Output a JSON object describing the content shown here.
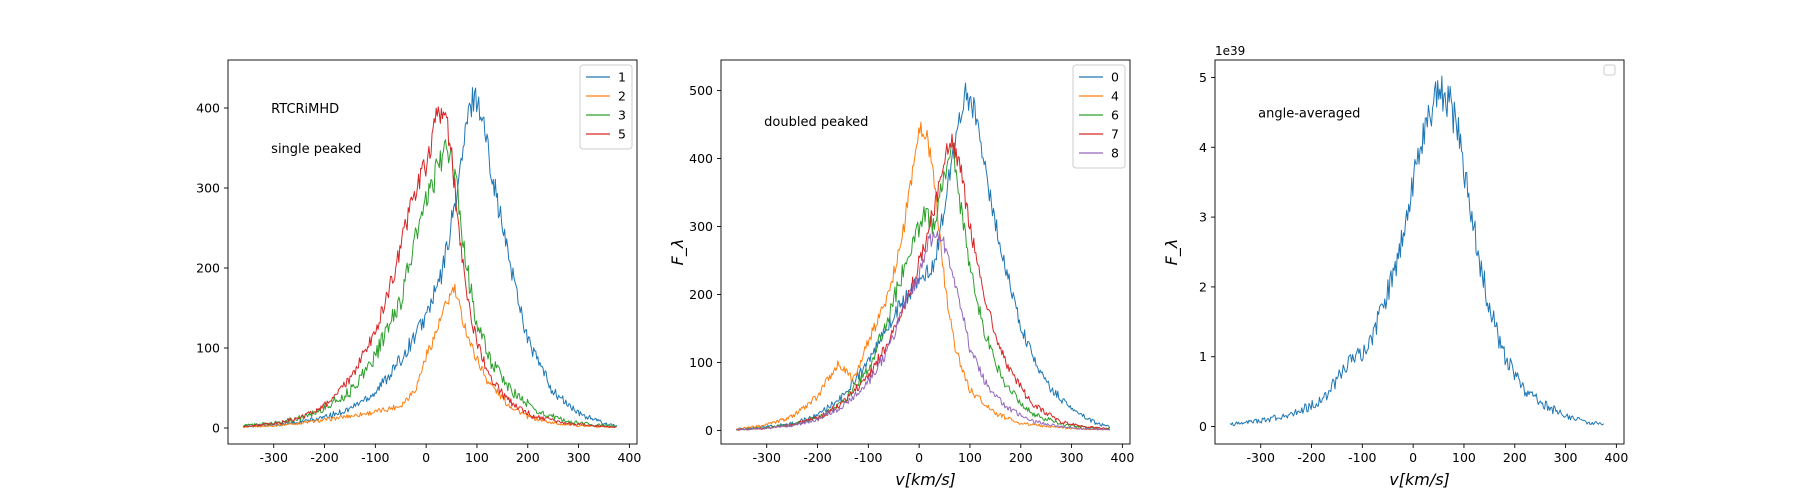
{
  "chart_data": [
    {
      "type": "line",
      "panel": "left",
      "title": "",
      "xlabel": "",
      "ylabel": "",
      "xlim": [
        -390,
        415
      ],
      "ylim": [
        -20,
        460
      ],
      "xticks": [
        -300,
        -200,
        -100,
        0,
        100,
        200,
        300,
        400
      ],
      "yticks": [
        0,
        100,
        200,
        300,
        400
      ],
      "grid": false,
      "legend_position": "top-right",
      "annotations": [
        {
          "text": "RTCRiMHD",
          "x": -305,
          "y": 400
        },
        {
          "text": "single peaked",
          "x": -305,
          "y": 350
        }
      ],
      "series": [
        {
          "name": "1",
          "color": "#1f77b4",
          "center": 90,
          "amp": 410,
          "wl": 100,
          "wr": 80,
          "noise": 12,
          "profile": [
            [
              -360,
              2
            ],
            [
              -300,
              4
            ],
            [
              -250,
              7
            ],
            [
              -200,
              13
            ],
            [
              -150,
              24
            ],
            [
              -100,
              45
            ],
            [
              -50,
              85
            ],
            [
              0,
              140
            ],
            [
              30,
              190
            ],
            [
              60,
              290
            ],
            [
              80,
              380
            ],
            [
              95,
              420
            ],
            [
              110,
              390
            ],
            [
              130,
              320
            ],
            [
              150,
              250
            ],
            [
              200,
              110
            ],
            [
              250,
              45
            ],
            [
              300,
              18
            ],
            [
              350,
              6
            ],
            [
              375,
              3
            ]
          ]
        },
        {
          "name": "2",
          "color": "#ff7f0e",
          "center": 50,
          "amp": 180,
          "wl": 60,
          "wr": 50,
          "noise": 6,
          "profile": [
            [
              -360,
              1
            ],
            [
              -300,
              3
            ],
            [
              -250,
              6
            ],
            [
              -200,
              10
            ],
            [
              -150,
              15
            ],
            [
              -100,
              20
            ],
            [
              -50,
              28
            ],
            [
              -20,
              50
            ],
            [
              0,
              90
            ],
            [
              20,
              120
            ],
            [
              40,
              155
            ],
            [
              55,
              175
            ],
            [
              70,
              140
            ],
            [
              90,
              100
            ],
            [
              120,
              60
            ],
            [
              160,
              30
            ],
            [
              200,
              14
            ],
            [
              250,
              6
            ],
            [
              300,
              3
            ],
            [
              375,
              1
            ]
          ]
        },
        {
          "name": "3",
          "color": "#2ca02c",
          "center": 40,
          "amp": 340,
          "wl": 90,
          "wr": 60,
          "noise": 12,
          "profile": [
            [
              -360,
              3
            ],
            [
              -300,
              6
            ],
            [
              -250,
              12
            ],
            [
              -200,
              25
            ],
            [
              -150,
              45
            ],
            [
              -100,
              90
            ],
            [
              -50,
              160
            ],
            [
              -20,
              240
            ],
            [
              10,
              300
            ],
            [
              30,
              340
            ],
            [
              45,
              345
            ],
            [
              60,
              300
            ],
            [
              80,
              200
            ],
            [
              100,
              130
            ],
            [
              130,
              80
            ],
            [
              170,
              45
            ],
            [
              220,
              20
            ],
            [
              280,
              8
            ],
            [
              330,
              4
            ],
            [
              375,
              2
            ]
          ]
        },
        {
          "name": "5",
          "color": "#d62728",
          "center": 30,
          "amp": 400,
          "wl": 80,
          "wr": 45,
          "noise": 10,
          "profile": [
            [
              -360,
              2
            ],
            [
              -300,
              5
            ],
            [
              -250,
              12
            ],
            [
              -200,
              28
            ],
            [
              -150,
              60
            ],
            [
              -100,
              120
            ],
            [
              -60,
              200
            ],
            [
              -30,
              280
            ],
            [
              0,
              330
            ],
            [
              20,
              385
            ],
            [
              35,
              405
            ],
            [
              50,
              340
            ],
            [
              70,
              220
            ],
            [
              90,
              130
            ],
            [
              120,
              70
            ],
            [
              160,
              35
            ],
            [
              210,
              15
            ],
            [
              270,
              6
            ],
            [
              330,
              3
            ],
            [
              375,
              1
            ]
          ]
        }
      ]
    },
    {
      "type": "line",
      "panel": "middle",
      "title": "",
      "xlabel": "v[km/s]",
      "ylabel": "F_λ",
      "xlim": [
        -390,
        415
      ],
      "ylim": [
        -20,
        545
      ],
      "xticks": [
        -300,
        -200,
        -100,
        0,
        100,
        200,
        300,
        400
      ],
      "yticks": [
        0,
        100,
        200,
        300,
        400,
        500
      ],
      "grid": false,
      "legend_position": "top-right",
      "annotations": [
        {
          "text": "doubled peaked",
          "x": -305,
          "y": 455
        }
      ],
      "series": [
        {
          "name": "0",
          "color": "#1f77b4",
          "center": 90,
          "amp": 500,
          "noise": 12,
          "profile": [
            [
              -360,
              2
            ],
            [
              -300,
              5
            ],
            [
              -250,
              10
            ],
            [
              -200,
              22
            ],
            [
              -150,
              50
            ],
            [
              -100,
              100
            ],
            [
              -50,
              170
            ],
            [
              0,
              220
            ],
            [
              30,
              240
            ],
            [
              50,
              330
            ],
            [
              70,
              420
            ],
            [
              90,
              495
            ],
            [
              110,
              470
            ],
            [
              130,
              380
            ],
            [
              160,
              270
            ],
            [
              200,
              150
            ],
            [
              250,
              70
            ],
            [
              300,
              30
            ],
            [
              350,
              10
            ],
            [
              375,
              5
            ]
          ]
        },
        {
          "name": "4",
          "color": "#ff7f0e",
          "center": 0,
          "amp": 450,
          "noise": 10,
          "profile": [
            [
              -360,
              2
            ],
            [
              -300,
              8
            ],
            [
              -250,
              20
            ],
            [
              -200,
              50
            ],
            [
              -160,
              100
            ],
            [
              -130,
              75
            ],
            [
              -100,
              130
            ],
            [
              -60,
              200
            ],
            [
              -30,
              300
            ],
            [
              -10,
              400
            ],
            [
              0,
              440
            ],
            [
              15,
              440
            ],
            [
              30,
              360
            ],
            [
              50,
              220
            ],
            [
              70,
              120
            ],
            [
              100,
              60
            ],
            [
              150,
              25
            ],
            [
              200,
              10
            ],
            [
              300,
              3
            ],
            [
              375,
              1
            ]
          ]
        },
        {
          "name": "6",
          "color": "#2ca02c",
          "center": 60,
          "amp": 420,
          "noise": 12,
          "profile": [
            [
              -360,
              1
            ],
            [
              -300,
              4
            ],
            [
              -250,
              8
            ],
            [
              -200,
              18
            ],
            [
              -150,
              40
            ],
            [
              -100,
              90
            ],
            [
              -60,
              170
            ],
            [
              -20,
              260
            ],
            [
              10,
              320
            ],
            [
              30,
              300
            ],
            [
              50,
              380
            ],
            [
              65,
              420
            ],
            [
              80,
              340
            ],
            [
              100,
              240
            ],
            [
              130,
              140
            ],
            [
              170,
              65
            ],
            [
              220,
              25
            ],
            [
              280,
              9
            ],
            [
              330,
              4
            ],
            [
              375,
              2
            ]
          ]
        },
        {
          "name": "7",
          "color": "#d62728",
          "center": 60,
          "amp": 440,
          "noise": 10,
          "profile": [
            [
              -360,
              1
            ],
            [
              -300,
              3
            ],
            [
              -250,
              8
            ],
            [
              -200,
              18
            ],
            [
              -150,
              40
            ],
            [
              -100,
              80
            ],
            [
              -60,
              130
            ],
            [
              -20,
              200
            ],
            [
              10,
              270
            ],
            [
              40,
              360
            ],
            [
              60,
              430
            ],
            [
              80,
              390
            ],
            [
              100,
              300
            ],
            [
              130,
              190
            ],
            [
              170,
              100
            ],
            [
              220,
              40
            ],
            [
              280,
              12
            ],
            [
              330,
              5
            ],
            [
              375,
              2
            ]
          ]
        },
        {
          "name": "8",
          "color": "#9467bd",
          "center": 50,
          "amp": 300,
          "noise": 8,
          "profile": [
            [
              -360,
              1
            ],
            [
              -300,
              3
            ],
            [
              -250,
              7
            ],
            [
              -200,
              16
            ],
            [
              -150,
              35
            ],
            [
              -100,
              70
            ],
            [
              -60,
              120
            ],
            [
              -30,
              180
            ],
            [
              0,
              230
            ],
            [
              20,
              280
            ],
            [
              40,
              290
            ],
            [
              60,
              250
            ],
            [
              80,
              190
            ],
            [
              100,
              120
            ],
            [
              130,
              70
            ],
            [
              170,
              35
            ],
            [
              220,
              14
            ],
            [
              280,
              5
            ],
            [
              330,
              2
            ],
            [
              375,
              1
            ]
          ]
        }
      ]
    },
    {
      "type": "line",
      "panel": "right",
      "title": "",
      "xlabel": "v[km/s]",
      "ylabel": "F_λ",
      "y_exponent_label": "1e39",
      "xlim": [
        -390,
        415
      ],
      "ylim": [
        -0.25,
        5.25
      ],
      "xticks": [
        -300,
        -200,
        -100,
        0,
        100,
        200,
        300,
        400
      ],
      "yticks": [
        0,
        1,
        2,
        3,
        4,
        5
      ],
      "grid": false,
      "legend_position": "top-right",
      "legend_empty": true,
      "annotations": [
        {
          "text": "angle-averaged",
          "x": -305,
          "y": 4.5
        }
      ],
      "series": [
        {
          "name": "",
          "color": "#1f77b4",
          "center": 50,
          "amp": 4.8,
          "noise": 0.18,
          "profile": [
            [
              -360,
              0.03
            ],
            [
              -300,
              0.08
            ],
            [
              -250,
              0.15
            ],
            [
              -200,
              0.3
            ],
            [
              -170,
              0.45
            ],
            [
              -140,
              0.8
            ],
            [
              -120,
              1.0
            ],
            [
              -100,
              1.05
            ],
            [
              -80,
              1.3
            ],
            [
              -60,
              1.7
            ],
            [
              -30,
              2.4
            ],
            [
              -10,
              3.2
            ],
            [
              10,
              3.9
            ],
            [
              30,
              4.5
            ],
            [
              50,
              4.75
            ],
            [
              70,
              4.7
            ],
            [
              90,
              4.2
            ],
            [
              110,
              3.2
            ],
            [
              130,
              2.4
            ],
            [
              150,
              1.7
            ],
            [
              180,
              1.0
            ],
            [
              220,
              0.5
            ],
            [
              260,
              0.3
            ],
            [
              300,
              0.15
            ],
            [
              340,
              0.07
            ],
            [
              375,
              0.03
            ]
          ]
        }
      ]
    }
  ]
}
